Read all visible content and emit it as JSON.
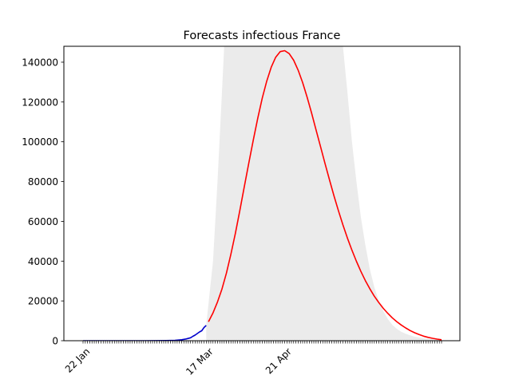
{
  "chart_data": {
    "type": "line",
    "title": "Forecasts infectious France",
    "xlabel": "",
    "ylabel": "",
    "x_start": "2020-01-22",
    "x_end": "2020-06-30",
    "ylim": [
      0,
      148000
    ],
    "yticks": [
      0,
      20000,
      40000,
      60000,
      80000,
      100000,
      120000,
      140000
    ],
    "ytick_labels": [
      "0",
      "20000",
      "40000",
      "60000",
      "80000",
      "100000",
      "120000",
      "140000"
    ],
    "xtick_labels": [
      {
        "date": "2020-01-22",
        "label": "22 Jan"
      },
      {
        "date": "2020-03-17",
        "label": "17 Mar"
      },
      {
        "date": "2020-04-21",
        "label": "21 Apr"
      }
    ],
    "grid": false,
    "legend": "none",
    "series": [
      {
        "role": "observed",
        "color": "#0000cc",
        "points": [
          [
            "2020-01-22",
            0
          ],
          [
            "2020-02-05",
            0
          ],
          [
            "2020-02-19",
            0
          ],
          [
            "2020-02-28",
            100
          ],
          [
            "2020-03-03",
            200
          ],
          [
            "2020-03-06",
            500
          ],
          [
            "2020-03-08",
            900
          ],
          [
            "2020-03-10",
            1500
          ],
          [
            "2020-03-11",
            2200
          ],
          [
            "2020-03-12",
            2800
          ],
          [
            "2020-03-13",
            3600
          ],
          [
            "2020-03-14",
            4400
          ],
          [
            "2020-03-15",
            5000
          ],
          [
            "2020-03-16",
            6600
          ],
          [
            "2020-03-17",
            7700
          ]
        ]
      },
      {
        "role": "forecast",
        "color": "#ff0000",
        "points": [
          [
            "2020-03-18",
            9500
          ],
          [
            "2020-03-20",
            14000
          ],
          [
            "2020-03-22",
            19500
          ],
          [
            "2020-03-24",
            26000
          ],
          [
            "2020-03-26",
            34000
          ],
          [
            "2020-03-28",
            43500
          ],
          [
            "2020-03-30",
            54000
          ],
          [
            "2020-04-01",
            65500
          ],
          [
            "2020-04-03",
            77500
          ],
          [
            "2020-04-05",
            89500
          ],
          [
            "2020-04-07",
            101000
          ],
          [
            "2020-04-09",
            112000
          ],
          [
            "2020-04-11",
            122000
          ],
          [
            "2020-04-13",
            130500
          ],
          [
            "2020-04-15",
            137500
          ],
          [
            "2020-04-17",
            142500
          ],
          [
            "2020-04-19",
            145300
          ],
          [
            "2020-04-21",
            145800
          ],
          [
            "2020-04-23",
            144300
          ],
          [
            "2020-04-25",
            141000
          ],
          [
            "2020-04-27",
            136000
          ],
          [
            "2020-04-29",
            129800
          ],
          [
            "2020-05-01",
            122500
          ],
          [
            "2020-05-03",
            114500
          ],
          [
            "2020-05-05",
            106000
          ],
          [
            "2020-05-07",
            97500
          ],
          [
            "2020-05-09",
            89000
          ],
          [
            "2020-05-11",
            80800
          ],
          [
            "2020-05-13",
            72800
          ],
          [
            "2020-05-15",
            65300
          ],
          [
            "2020-05-17",
            58200
          ],
          [
            "2020-05-19",
            51600
          ],
          [
            "2020-05-21",
            45500
          ],
          [
            "2020-05-23",
            39900
          ],
          [
            "2020-05-25",
            34800
          ],
          [
            "2020-05-27",
            30200
          ],
          [
            "2020-05-29",
            26100
          ],
          [
            "2020-05-31",
            22400
          ],
          [
            "2020-06-02",
            19200
          ],
          [
            "2020-06-04",
            16300
          ],
          [
            "2020-06-06",
            13800
          ],
          [
            "2020-06-08",
            11500
          ],
          [
            "2020-06-10",
            9600
          ],
          [
            "2020-06-12",
            7900
          ],
          [
            "2020-06-14",
            6400
          ],
          [
            "2020-06-16",
            5100
          ],
          [
            "2020-06-18",
            4000
          ],
          [
            "2020-06-20",
            3100
          ],
          [
            "2020-06-22",
            2300
          ],
          [
            "2020-06-24",
            1700
          ],
          [
            "2020-06-26",
            1200
          ],
          [
            "2020-06-28",
            800
          ],
          [
            "2020-06-30",
            500
          ]
        ]
      }
    ],
    "band": {
      "color": "#ebebeb",
      "upper": [
        [
          "2020-03-17",
          8000
        ],
        [
          "2020-03-20",
          40000
        ],
        [
          "2020-03-22",
          80000
        ],
        [
          "2020-03-24",
          125000
        ],
        [
          "2020-03-25",
          148000
        ],
        [
          "2020-05-17",
          148000
        ],
        [
          "2020-05-19",
          125000
        ],
        [
          "2020-05-21",
          100000
        ],
        [
          "2020-05-23",
          80000
        ],
        [
          "2020-05-25",
          62000
        ],
        [
          "2020-05-27",
          48000
        ],
        [
          "2020-05-29",
          36000
        ],
        [
          "2020-05-31",
          27000
        ],
        [
          "2020-06-02",
          20000
        ],
        [
          "2020-06-04",
          15000
        ],
        [
          "2020-06-06",
          11000
        ],
        [
          "2020-06-08",
          8000
        ],
        [
          "2020-06-10",
          6000
        ],
        [
          "2020-06-12",
          4500
        ],
        [
          "2020-06-14",
          3500
        ],
        [
          "2020-06-16",
          2700
        ],
        [
          "2020-06-18",
          2000
        ],
        [
          "2020-06-20",
          1600
        ],
        [
          "2020-06-22",
          1200
        ],
        [
          "2020-06-24",
          900
        ],
        [
          "2020-06-26",
          700
        ],
        [
          "2020-06-28",
          500
        ],
        [
          "2020-06-30",
          400
        ]
      ]
    }
  }
}
